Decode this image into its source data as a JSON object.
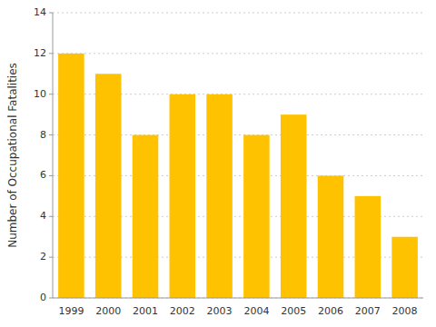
{
  "chart_data": {
    "type": "bar",
    "ylabel": "Number of Occupational Fatalities",
    "categories": [
      "1999",
      "2000",
      "2001",
      "2002",
      "2003",
      "2004",
      "2005",
      "2006",
      "2007",
      "2008"
    ],
    "values": [
      12,
      11,
      8,
      10,
      10,
      8,
      9,
      6,
      5,
      3
    ],
    "color": "#FFC200",
    "ylim": [
      0,
      14
    ],
    "yticks": [
      0,
      2,
      4,
      6,
      8,
      10,
      12,
      14
    ],
    "grid": true
  }
}
